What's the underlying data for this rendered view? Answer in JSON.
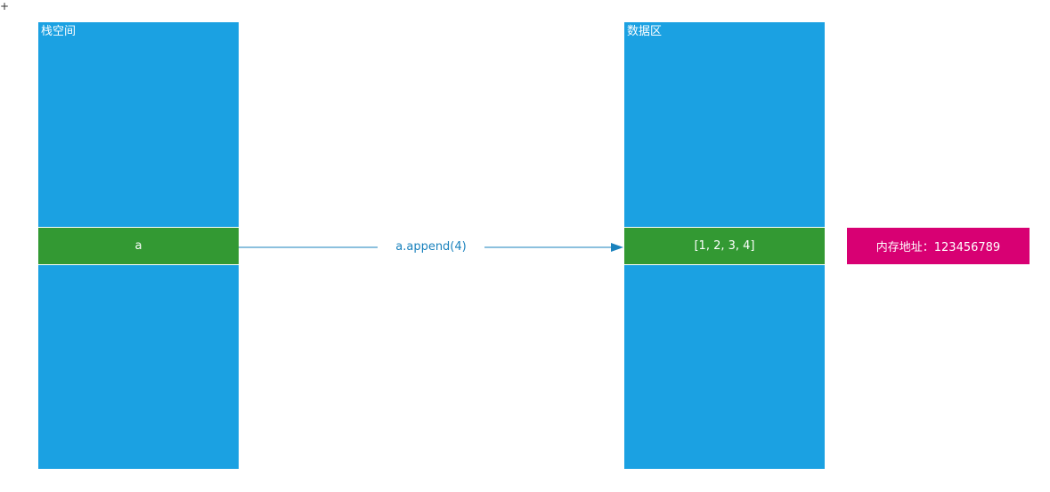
{
  "stack_column": {
    "title": "栈空间",
    "cell_label": "a"
  },
  "data_column": {
    "title": "数据区",
    "cell_label": "[1, 2, 3, 4]"
  },
  "address_box": {
    "label": "内存地址：123456789"
  },
  "edge": {
    "label": "a.append(4)"
  },
  "corner_mark": "+",
  "colors": {
    "column_fill": "#1ba1e2",
    "cell_fill": "#339933",
    "address_fill": "#d80073",
    "arrow": "#1a82bd"
  }
}
